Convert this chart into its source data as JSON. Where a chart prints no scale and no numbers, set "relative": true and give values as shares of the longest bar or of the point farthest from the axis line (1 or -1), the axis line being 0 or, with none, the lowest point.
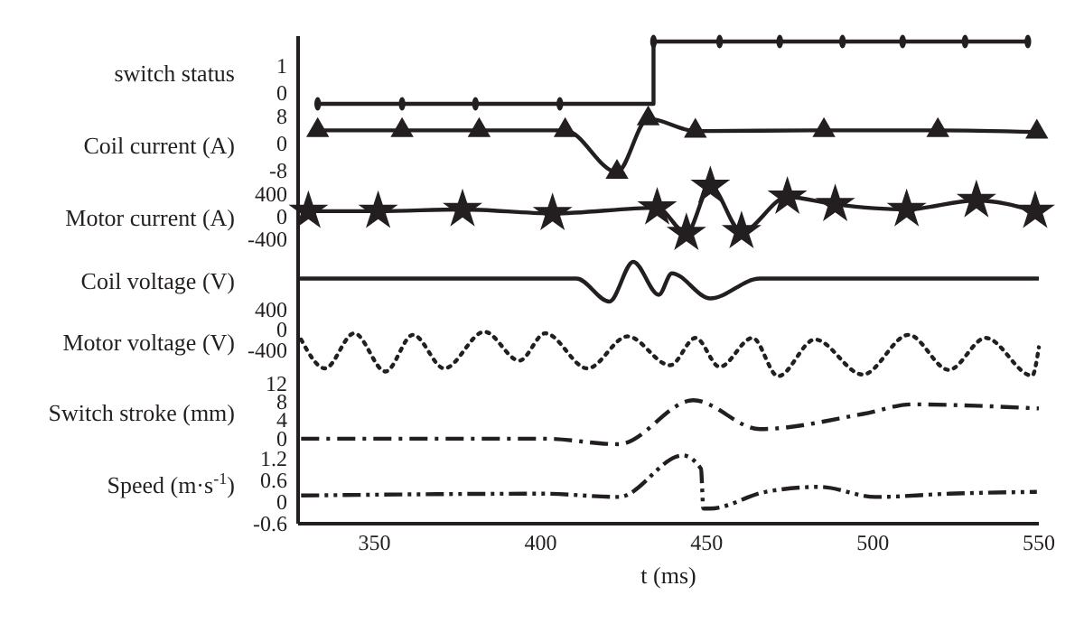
{
  "chart_data": [
    {
      "type": "step",
      "ylabel": "switch status",
      "xlim": [
        327,
        550
      ],
      "ylim": [
        -0.7,
        2.1
      ],
      "yticks": [
        1,
        0
      ],
      "tick_labels": "y",
      "marker": "circle",
      "line_style": "solid",
      "series": [
        {
          "color": "#231f20",
          "x": [
            332.9,
            358.3,
            380.4,
            405.8,
            434,
            453.9,
            472,
            490.9,
            509,
            527.8,
            546.7
          ],
          "values": [
            -0.4,
            -0.4,
            -0.4,
            -0.4,
            1.9,
            1.9,
            1.9,
            1.9,
            1.9,
            1.9,
            1.9
          ]
        }
      ]
    },
    {
      "type": "line",
      "ylabel": "Coil current (A)",
      "xlim": [
        327,
        550
      ],
      "ylim": [
        -11,
        9.5
      ],
      "yticks": [
        8,
        0,
        -8
      ],
      "tick_labels": "y",
      "marker": "triangle",
      "line_style": "solid",
      "series": [
        {
          "color": "#231f20",
          "x": [
            332.9,
            358.3,
            381.5,
            407.4,
            423,
            432.4,
            446.6,
            485.3,
            519.6,
            549.4
          ],
          "values": [
            4,
            4,
            4,
            4,
            -8.5,
            7.5,
            3.8,
            4,
            4,
            3.5
          ]
        }
      ]
    },
    {
      "type": "line",
      "ylabel": "Motor current (A)",
      "xlim": [
        327,
        550
      ],
      "ylim": [
        -700,
        640
      ],
      "yticks": [
        400,
        0,
        -400
      ],
      "tick_labels": "y",
      "marker": "star",
      "line_style": "solid",
      "series": [
        {
          "color": "#231f20",
          "x": [
            330.1,
            351.1,
            376.5,
            403.6,
            435.1,
            443.9,
            451.1,
            460.5,
            474.3,
            488.7,
            510.2,
            531.2,
            548.9
          ],
          "values": [
            100,
            100,
            130,
            60,
            160,
            -290,
            540,
            -260,
            350,
            220,
            130,
            290,
            100
          ]
        }
      ]
    },
    {
      "type": "line",
      "ylabel": "Coil voltage (V)",
      "xlim": [
        327,
        550
      ],
      "relative": true,
      "tick_labels": false,
      "line_style": "solid",
      "series": [
        {
          "color": "#231f20",
          "x": [
            327,
            410.8,
            420.7,
            427.9,
            435.6,
            439.5,
            451.1,
            466,
            550
          ],
          "values": [
            0.58,
            0.58,
            0,
            1,
            0.17,
            0.71,
            0.08,
            0.58,
            0.58
          ]
        }
      ]
    },
    {
      "type": "line",
      "ylabel": "Motor voltage (V)",
      "xlim": [
        327,
        550
      ],
      "ylim": [
        -950,
        450
      ],
      "yticks": [
        400,
        0,
        -400
      ],
      "tick_labels": "y",
      "line_style": "dotted",
      "series": [
        {
          "color": "#231f20",
          "x": [
            327.9,
            335.1,
            343.9,
            353.3,
            361.6,
            371,
            383.1,
            393.6,
            401.4,
            414.1,
            426.2,
            439,
            446.7,
            453.9,
            463.8,
            471.5,
            482.6,
            497,
            510.8,
            522.9,
            534,
            548,
            550
          ],
          "values": [
            -180,
            -740,
            -60,
            -800,
            -90,
            -740,
            -30,
            -590,
            -60,
            -740,
            -120,
            -680,
            -150,
            -710,
            -150,
            -890,
            -180,
            -860,
            -90,
            -770,
            -150,
            -880,
            -330
          ]
        }
      ]
    },
    {
      "type": "line",
      "ylabel": "Switch stroke (mm)",
      "xlim": [
        327,
        550
      ],
      "ylim": [
        -2,
        13
      ],
      "yticks": [
        12,
        8,
        4,
        0
      ],
      "tick_labels": "y",
      "line_style": "dashdot",
      "series": [
        {
          "color": "#231f20",
          "x": [
            327.9,
            401,
            423.5,
            446,
            466,
            497,
            512,
            531,
            550
          ],
          "values": [
            0,
            0,
            -1.2,
            8.4,
            2.1,
            5.4,
            7.5,
            7.2,
            6.6
          ]
        }
      ]
    },
    {
      "type": "line",
      "ylabel": "Speed (m·s$^{-1}$)",
      "xlabel": "t (ms)",
      "xlim": [
        327,
        550
      ],
      "ylim": [
        -0.6,
        1.5
      ],
      "yticks": [
        1.2,
        0.6,
        0,
        -0.6
      ],
      "xticks": [
        350,
        400,
        450,
        500,
        550
      ],
      "line_style": "dashdotdot",
      "series": [
        {
          "color": "#231f20",
          "x": [
            327.9,
            401,
            423.5,
            442.8,
            448.3,
            449,
            451,
            467.7,
            484,
            500.8,
            523,
            549.4
          ],
          "values": [
            0.18,
            0.23,
            0.14,
            1.29,
            0.92,
            -0.18,
            -0.18,
            0.28,
            0.42,
            0.14,
            0.23,
            0.28
          ]
        }
      ]
    }
  ]
}
